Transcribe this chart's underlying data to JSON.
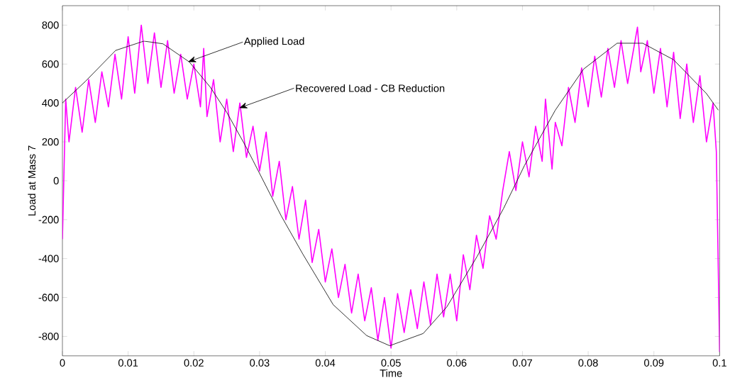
{
  "chart_data": {
    "type": "line",
    "xlabel": "Time",
    "ylabel": "Load at Mass 7",
    "xlim": [
      0,
      0.1
    ],
    "ylim": [
      -900,
      900
    ],
    "xticks": [
      0,
      0.01,
      0.02,
      0.03,
      0.04,
      0.05,
      0.06,
      0.07,
      0.08,
      0.09,
      0.1
    ],
    "yticks": [
      -800,
      -600,
      -400,
      -200,
      0,
      200,
      400,
      600,
      800
    ],
    "annotations": [
      {
        "text": "Applied Load",
        "x": 0.0191,
        "y": 611
      },
      {
        "text": "Recovered Load - CB Reduction",
        "x": 0.0269,
        "y": 374
      }
    ],
    "series": [
      {
        "color": "#ff00ff",
        "x": [
          0,
          0.0005,
          0.001,
          0.002,
          0.003,
          0.004,
          0.005,
          0.006,
          0.007,
          0.008,
          0.009,
          0.01,
          0.011,
          0.012,
          0.013,
          0.014,
          0.015,
          0.016,
          0.017,
          0.018,
          0.019,
          0.02,
          0.021,
          0.0215,
          0.022,
          0.023,
          0.024,
          0.025,
          0.026,
          0.027,
          0.028,
          0.029,
          0.03,
          0.031,
          0.032,
          0.033,
          0.034,
          0.035,
          0.036,
          0.037,
          0.038,
          0.039,
          0.04,
          0.041,
          0.042,
          0.043,
          0.044,
          0.045,
          0.046,
          0.047,
          0.048,
          0.049,
          0.05,
          0.051,
          0.052,
          0.053,
          0.054,
          0.055,
          0.056,
          0.057,
          0.058,
          0.059,
          0.06,
          0.061,
          0.062,
          0.063,
          0.064,
          0.065,
          0.066,
          0.067,
          0.068,
          0.069,
          0.07,
          0.071,
          0.072,
          0.073,
          0.0735,
          0.0745,
          0.075,
          0.076,
          0.077,
          0.078,
          0.079,
          0.08,
          0.081,
          0.082,
          0.083,
          0.084,
          0.085,
          0.086,
          0.0875,
          0.088,
          0.089,
          0.09,
          0.091,
          0.092,
          0.093,
          0.094,
          0.095,
          0.096,
          0.097,
          0.098,
          0.099,
          0.0995,
          0.1
        ],
        "values": [
          -300,
          420,
          200,
          480,
          250,
          520,
          300,
          560,
          380,
          650,
          420,
          740,
          450,
          800,
          500,
          760,
          480,
          720,
          450,
          650,
          420,
          600,
          380,
          680,
          330,
          520,
          200,
          420,
          150,
          400,
          120,
          280,
          50,
          250,
          -80,
          100,
          -200,
          -30,
          -300,
          -100,
          -420,
          -250,
          -520,
          -350,
          -600,
          -430,
          -680,
          -480,
          -720,
          -550,
          -820,
          -600,
          -860,
          -580,
          -780,
          -560,
          -760,
          -520,
          -740,
          -480,
          -700,
          -480,
          -720,
          -380,
          -560,
          -280,
          -450,
          -180,
          -300,
          -50,
          150,
          -50,
          200,
          20,
          280,
          100,
          420,
          60,
          300,
          180,
          480,
          300,
          580,
          380,
          640,
          430,
          680,
          480,
          720,
          500,
          790,
          560,
          720,
          450,
          680,
          380,
          660,
          320,
          600,
          300,
          540,
          200,
          400,
          150,
          -880
        ]
      },
      {
        "color": "#000000",
        "x": [
          0,
          0.0035,
          0.0081,
          0.0124,
          0.0153,
          0.0193,
          0.0225,
          0.025,
          0.0277,
          0.029,
          0.0333,
          0.0366,
          0.0412,
          0.0463,
          0.0498,
          0.0549,
          0.0585,
          0.0631,
          0.0671,
          0.0703,
          0.075,
          0.0793,
          0.0844,
          0.0883,
          0.093,
          0.098,
          0.0998
        ],
        "values": [
          400,
          511,
          670,
          718,
          704,
          611,
          481,
          352,
          189,
          104,
          -181,
          -378,
          -637,
          -796,
          -848,
          -785,
          -648,
          -389,
          -144,
          78,
          363,
          574,
          707,
          707,
          622,
          448,
          363
        ]
      }
    ]
  }
}
